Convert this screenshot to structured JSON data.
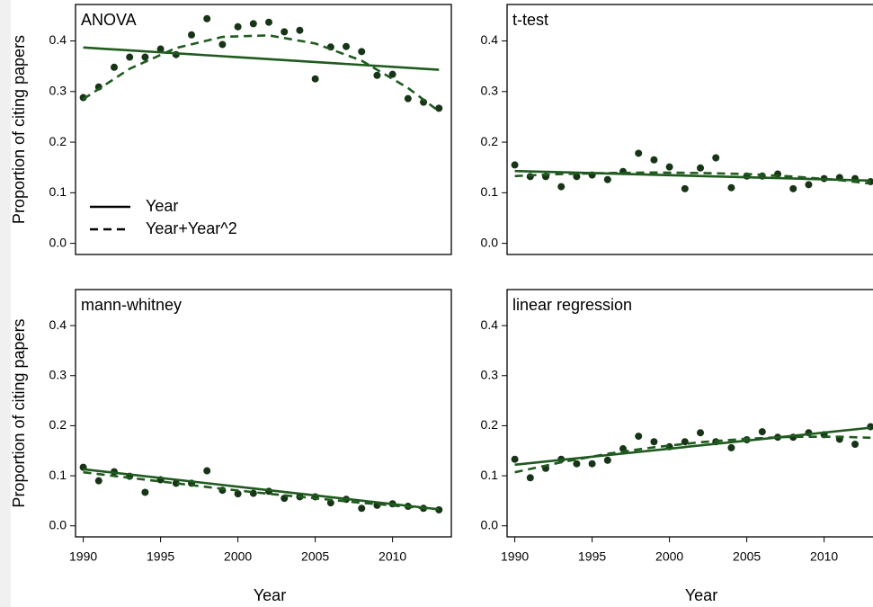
{
  "chart_data": [
    {
      "type": "scatter",
      "title": "ANOVA",
      "ylabel": "Proportion of citing papers",
      "xlim": [
        1989.5,
        2013.8
      ],
      "ylim": [
        -0.022,
        0.472
      ],
      "yticks": [
        {
          "value": 0,
          "label": "0.0"
        },
        0.1,
        0.2,
        0.3,
        0.4
      ],
      "legend": "lower left",
      "legend_color": "#000000",
      "series": [
        {
          "mode": "points",
          "color": "#173417",
          "x": [
            1990,
            1991,
            1992,
            1993,
            1994,
            1995,
            1996,
            1997,
            1998,
            1999,
            2000,
            2001,
            2002,
            2003,
            2004,
            2005,
            2006,
            2007,
            2008,
            2009,
            2010,
            2011,
            2012,
            2013
          ],
          "values": [
            0.288,
            0.309,
            0.348,
            0.368,
            0.368,
            0.384,
            0.373,
            0.412,
            0.444,
            0.393,
            0.428,
            0.434,
            0.437,
            0.418,
            0.421,
            0.325,
            0.388,
            0.389,
            0.379,
            0.332,
            0.334,
            0.286,
            0.279,
            0.267
          ]
        },
        {
          "name": "Year",
          "mode": "line",
          "color": "#1f5a1f",
          "x": [
            1990,
            2013
          ],
          "values": [
            0.387,
            0.343
          ]
        },
        {
          "name": "Year+Year^2",
          "mode": "line",
          "dash": "9,6",
          "color": "#1f5a1f",
          "x": [
            1990,
            1993,
            1996,
            1999,
            2002,
            2005,
            2008,
            2011,
            2013
          ],
          "values": [
            0.285,
            0.345,
            0.386,
            0.408,
            0.411,
            0.395,
            0.361,
            0.307,
            0.261
          ]
        }
      ]
    },
    {
      "type": "scatter",
      "title": "t-test",
      "xlim": [
        1989.5,
        2013.8
      ],
      "ylim": [
        -0.022,
        0.472
      ],
      "yticks": [
        {
          "value": 0,
          "label": "0.0"
        },
        0.1,
        0.2,
        0.3,
        0.4
      ],
      "series": [
        {
          "mode": "points",
          "color": "#173417",
          "x": [
            1990,
            1991,
            1992,
            1993,
            1994,
            1995,
            1996,
            1997,
            1998,
            1999,
            2000,
            2001,
            2002,
            2003,
            2004,
            2005,
            2006,
            2007,
            2008,
            2009,
            2010,
            2011,
            2012,
            2013
          ],
          "values": [
            0.155,
            0.132,
            0.132,
            0.112,
            0.132,
            0.135,
            0.126,
            0.142,
            0.178,
            0.165,
            0.151,
            0.108,
            0.149,
            0.169,
            0.11,
            0.133,
            0.133,
            0.137,
            0.108,
            0.116,
            0.128,
            0.13,
            0.128,
            0.122
          ]
        },
        {
          "mode": "line",
          "color": "#1f5a1f",
          "x": [
            1990,
            2013
          ],
          "values": [
            0.143,
            0.124
          ]
        },
        {
          "mode": "line",
          "dash": "9,6",
          "color": "#1f5a1f",
          "x": [
            1990,
            1993,
            1996,
            1999,
            2002,
            2005,
            2008,
            2011,
            2013
          ],
          "values": [
            0.133,
            0.137,
            0.139,
            0.14,
            0.139,
            0.137,
            0.132,
            0.125,
            0.118
          ]
        }
      ]
    },
    {
      "type": "scatter",
      "title": "mann-whitney",
      "ylabel": "Proportion of citing papers",
      "xlabel": "Year",
      "xlim": [
        1989.5,
        2013.8
      ],
      "ylim": [
        -0.022,
        0.472
      ],
      "xticks": [
        1990,
        1995,
        2000,
        2005,
        2010
      ],
      "yticks": [
        {
          "value": 0,
          "label": "0.0"
        },
        0.1,
        0.2,
        0.3,
        0.4
      ],
      "series": [
        {
          "mode": "points",
          "color": "#173417",
          "x": [
            1990,
            1991,
            1992,
            1993,
            1994,
            1995,
            1996,
            1997,
            1998,
            1999,
            2000,
            2001,
            2002,
            2003,
            2004,
            2005,
            2006,
            2007,
            2008,
            2009,
            2010,
            2011,
            2012,
            2013
          ],
          "values": [
            0.117,
            0.09,
            0.108,
            0.099,
            0.067,
            0.092,
            0.085,
            0.085,
            0.11,
            0.071,
            0.064,
            0.065,
            0.069,
            0.055,
            0.058,
            0.058,
            0.046,
            0.053,
            0.035,
            0.041,
            0.044,
            0.039,
            0.035,
            0.032
          ]
        },
        {
          "mode": "line",
          "color": "#1f5a1f",
          "x": [
            1990,
            2013
          ],
          "values": [
            0.113,
            0.033
          ]
        },
        {
          "mode": "line",
          "dash": "9,6",
          "color": "#1f5a1f",
          "x": [
            1990,
            1993,
            1996,
            1999,
            2002,
            2005,
            2008,
            2011,
            2013
          ],
          "values": [
            0.107,
            0.096,
            0.085,
            0.074,
            0.064,
            0.055,
            0.046,
            0.038,
            0.033
          ]
        }
      ]
    },
    {
      "type": "scatter",
      "title": "linear regression",
      "xlabel": "Year",
      "xlim": [
        1989.5,
        2013.8
      ],
      "ylim": [
        -0.022,
        0.472
      ],
      "xticks": [
        1990,
        1995,
        2000,
        2005,
        2010
      ],
      "yticks": [
        {
          "value": 0,
          "label": "0.0"
        },
        0.1,
        0.2,
        0.3,
        0.4
      ],
      "series": [
        {
          "mode": "points",
          "color": "#173417",
          "x": [
            1990,
            1991,
            1992,
            1993,
            1994,
            1995,
            1996,
            1997,
            1998,
            1999,
            2000,
            2001,
            2002,
            2003,
            2004,
            2005,
            2006,
            2007,
            2008,
            2009,
            2010,
            2011,
            2012,
            2013
          ],
          "values": [
            0.133,
            0.096,
            0.115,
            0.133,
            0.124,
            0.124,
            0.131,
            0.154,
            0.179,
            0.168,
            0.158,
            0.168,
            0.186,
            0.168,
            0.156,
            0.172,
            0.188,
            0.177,
            0.177,
            0.186,
            0.182,
            0.173,
            0.163,
            0.198
          ]
        },
        {
          "mode": "line",
          "color": "#1f5a1f",
          "x": [
            1990,
            2013
          ],
          "values": [
            0.122,
            0.196
          ]
        },
        {
          "mode": "line",
          "dash": "9,6",
          "color": "#1f5a1f",
          "x": [
            1990,
            1993,
            1996,
            1999,
            2002,
            2005,
            2008,
            2011,
            2013
          ],
          "values": [
            0.107,
            0.127,
            0.144,
            0.157,
            0.167,
            0.174,
            0.178,
            0.178,
            0.176
          ]
        }
      ]
    }
  ]
}
